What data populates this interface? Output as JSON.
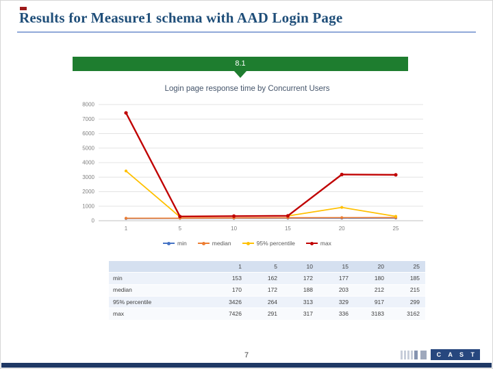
{
  "slide": {
    "title": "Results for Measure1 schema with AAD Login Page",
    "page_number": "7"
  },
  "banner": {
    "label": "8.1"
  },
  "chart": {
    "title": "Login page response time by Concurrent Users"
  },
  "chart_data": {
    "type": "line",
    "x_labels": [
      "1",
      "5",
      "10",
      "15",
      "20",
      "25"
    ],
    "y_axis": {
      "min": 0,
      "max": 8000,
      "step": 1000
    },
    "grid": true,
    "legend_position": "bottom",
    "series": [
      {
        "name": "min",
        "color": "#4472C4",
        "values": [
          153,
          162,
          172,
          177,
          180,
          185
        ]
      },
      {
        "name": "median",
        "color": "#ED7D31",
        "values": [
          170,
          172,
          188,
          203,
          212,
          215
        ]
      },
      {
        "name": "95% percentile",
        "color": "#FFC000",
        "values": [
          3426,
          264,
          313,
          329,
          917,
          299
        ]
      },
      {
        "name": "max",
        "color": "#C00000",
        "values": [
          7426,
          291,
          317,
          336,
          3183,
          3162
        ]
      }
    ]
  },
  "table": {
    "columns": [
      "",
      "1",
      "5",
      "10",
      "15",
      "20",
      "25"
    ]
  },
  "logo": {
    "text": "C A S T"
  },
  "colors": {
    "title_blue": "#1F4E79",
    "banner_green": "#1E7D2F",
    "bottom_bar_navy": "#1F3864",
    "logo_navy": "#27477E",
    "grid_line": "#E3E3E3",
    "axis_line": "#BFBFBF"
  }
}
